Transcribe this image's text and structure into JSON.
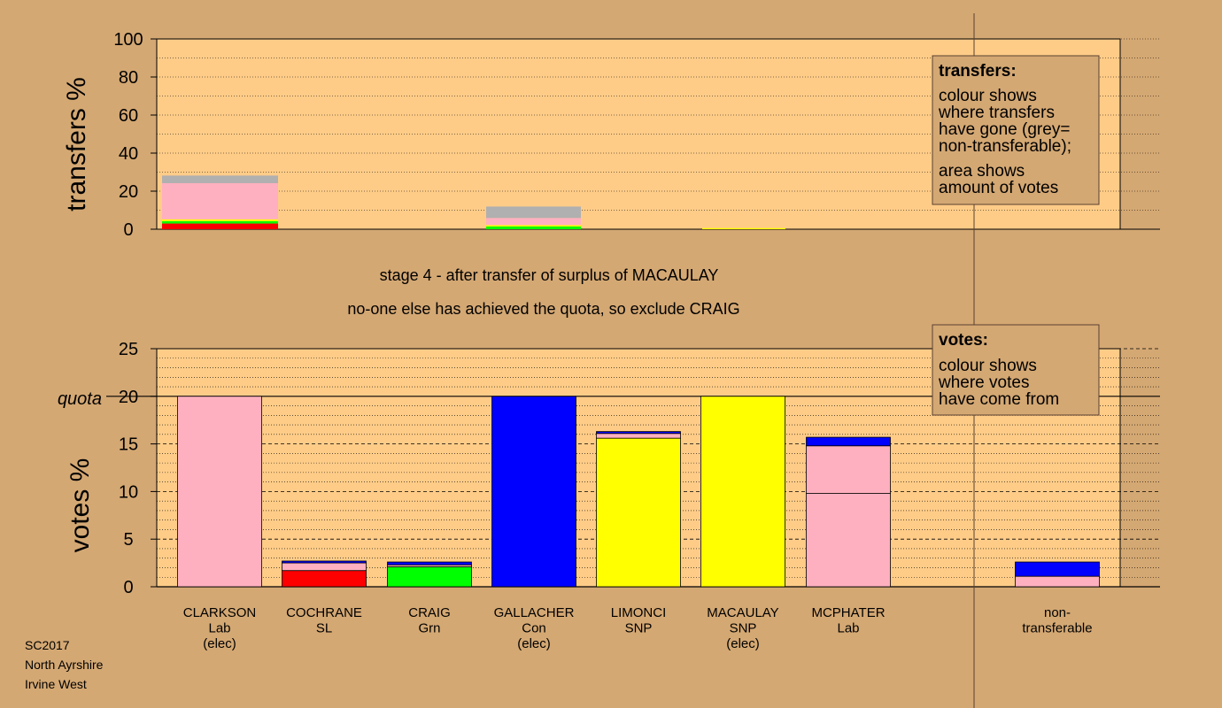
{
  "stage": {
    "line1": "stage 4 - after transfer of surplus of MACAULAY",
    "line2": "no-one else has achieved the quota, so exclude CRAIG"
  },
  "info": [
    "SC2017",
    "North Ayrshire",
    "Irvine West"
  ],
  "legend_transfers": {
    "title": "transfers:",
    "lines": [
      "colour shows",
      "where transfers",
      "have gone (grey=",
      "non-transferable);"
    ],
    "lines2": [
      "area shows",
      "amount of votes"
    ]
  },
  "legend_votes": {
    "title": "votes:",
    "lines": [
      "colour shows",
      "where votes",
      "have come from"
    ]
  },
  "colors": {
    "background": "#d4a873",
    "plot": "#ffcc88",
    "Lab": "#ffb0c0",
    "SL": "#ff0000",
    "Grn": "#00ff00",
    "Con": "#0000ff",
    "SNP": "#ffff00",
    "nontransferable": "#b0b0b0"
  },
  "chart_data": [
    {
      "id": "transfers",
      "type": "bar",
      "ylabel": "transfers %",
      "ylim": [
        0,
        100
      ],
      "yticks": [
        0,
        20,
        40,
        60,
        80,
        100
      ],
      "categories": [
        "CLARKSON",
        "COCHRANE",
        "CRAIG",
        "GALLACHER",
        "LIMONCI",
        "MACAULAY",
        "MCPHATER"
      ],
      "bars": [
        {
          "candidate": "CLARKSON",
          "segments": [
            {
              "party": "SL",
              "value": 3.0
            },
            {
              "party": "Grn",
              "value": 1.2
            },
            {
              "party": "SNP",
              "value": 1.0
            },
            {
              "party": "Lab",
              "value": 19.0
            },
            {
              "party": "nontransferable",
              "value": 4.0
            }
          ]
        },
        {
          "candidate": "GALLACHER",
          "segments": [
            {
              "party": "Grn",
              "value": 1.5
            },
            {
              "party": "SNP",
              "value": 0.7
            },
            {
              "party": "Lab",
              "value": 3.7
            },
            {
              "party": "nontransferable",
              "value": 6.0
            }
          ]
        },
        {
          "candidate": "MACAULAY",
          "segments": [
            {
              "party": "SNP",
              "value": 0.6
            }
          ]
        }
      ],
      "legend_position": "top-right"
    },
    {
      "id": "votes",
      "type": "bar",
      "ylabel": "votes %",
      "ylim": [
        0,
        25
      ],
      "yticks": [
        0,
        5,
        10,
        15,
        20,
        25
      ],
      "quota": {
        "label": "quota",
        "value": 20
      },
      "categories": [
        {
          "name": "CLARKSON",
          "party": "Lab",
          "note": "(elec)"
        },
        {
          "name": "COCHRANE",
          "party": "SL",
          "note": ""
        },
        {
          "name": "CRAIG",
          "party": "Grn",
          "note": ""
        },
        {
          "name": "GALLACHER",
          "party": "Con",
          "note": "(elec)"
        },
        {
          "name": "LIMONCI",
          "party": "SNP",
          "note": ""
        },
        {
          "name": "MACAULAY",
          "party": "SNP",
          "note": "(elec)"
        },
        {
          "name": "MCPHATER",
          "party": "Lab",
          "note": ""
        },
        {
          "name": "non-",
          "party": "transferable",
          "note": ""
        }
      ],
      "bars": [
        {
          "candidate": "CLARKSON",
          "segments": [
            {
              "party": "Lab",
              "value": 20.0
            }
          ]
        },
        {
          "candidate": "COCHRANE",
          "segments": [
            {
              "party": "SL",
              "value": 1.7
            },
            {
              "party": "Lab",
              "value": 0.8
            },
            {
              "party": "Con",
              "value": 0.2
            }
          ]
        },
        {
          "candidate": "CRAIG",
          "segments": [
            {
              "party": "Grn",
              "value": 2.1
            },
            {
              "party": "Lab",
              "value": 0.2
            },
            {
              "party": "Con",
              "value": 0.3
            }
          ]
        },
        {
          "candidate": "GALLACHER",
          "segments": [
            {
              "party": "Con",
              "value": 20.0
            }
          ]
        },
        {
          "candidate": "LIMONCI",
          "segments": [
            {
              "party": "SNP",
              "value": 15.6
            },
            {
              "party": "Lab",
              "value": 0.5
            },
            {
              "party": "Con",
              "value": 0.2
            }
          ]
        },
        {
          "candidate": "MACAULAY",
          "segments": [
            {
              "party": "SNP",
              "value": 20.0
            }
          ]
        },
        {
          "candidate": "MCPHATER",
          "segments": [
            {
              "party": "Lab",
              "value": 9.8
            },
            {
              "party": "Lab",
              "value": 5.0
            },
            {
              "party": "Con",
              "value": 0.9
            }
          ]
        },
        {
          "candidate": "non-transferable",
          "segments": [
            {
              "party": "Lab",
              "value": 1.1
            },
            {
              "party": "Con",
              "value": 1.5
            }
          ]
        }
      ],
      "legend_position": "top-right"
    }
  ]
}
